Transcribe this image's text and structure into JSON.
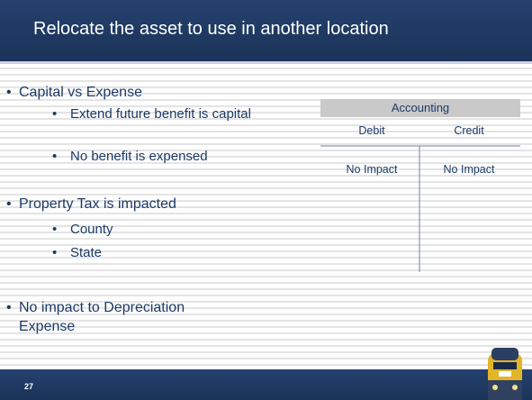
{
  "header": {
    "title": "Relocate the asset to use in another location"
  },
  "bullets": [
    {
      "text": "Capital vs Expense",
      "items": [
        "Extend future benefit is capital",
        "No benefit is expensed"
      ]
    },
    {
      "text": "Property Tax is impacted",
      "items": [
        "County",
        "State"
      ]
    },
    {
      "text": "No impact to Depreciation Expense"
    }
  ],
  "table": {
    "title": "Accounting",
    "columns": [
      "Debit",
      "Credit"
    ],
    "rows": [
      [
        "No Impact",
        "No Impact"
      ]
    ]
  },
  "footer": {
    "page_number": "27"
  }
}
